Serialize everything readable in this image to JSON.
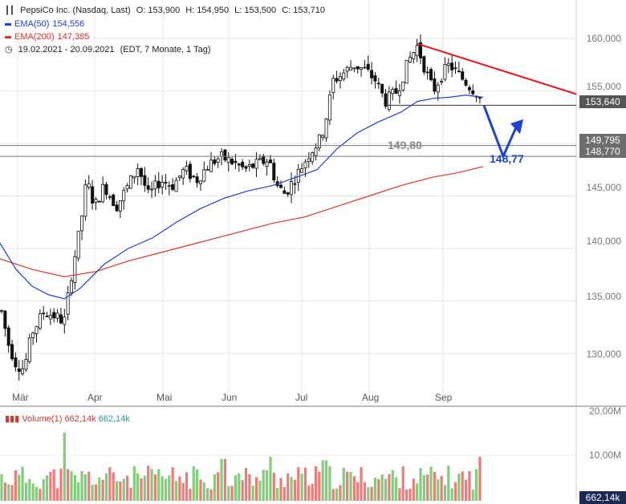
{
  "header": {
    "instrument": "PepsiCo Inc. (Nasdaq, Last)",
    "ohlc": {
      "O": "O: 153,900",
      "H": "H: 154,950",
      "L": "L: 153,500",
      "C": "C: 153,710"
    },
    "ema50_label": "EMA(50)",
    "ema50_value": "154,556",
    "ema200_label": "EMA(200)",
    "ema200_value": "147,385",
    "period_text": "19.02.2021 - 20.09.2021",
    "period_detail": "(EDT, 7 Monate, 1 Tag)"
  },
  "colors": {
    "ema50": "#1f3fd6",
    "ema200": "#e0332a",
    "trendline": "#e8131a",
    "arrow": "#1a44d6",
    "volume_up": "#7fcf7a",
    "volume_down": "#f07a7a"
  },
  "price_tags": {
    "last": "153,640",
    "support": "149,795",
    "target": "148,770",
    "volume_last": "662,14k"
  },
  "annotations": {
    "support_text": "149,80",
    "target_text": "148,77"
  },
  "volume": {
    "label": "Volume(1)",
    "value1": "662,14k",
    "value2": "662,14k",
    "axis": [
      "20,00M",
      "10,00M"
    ]
  },
  "chart_data": {
    "type": "candlestick",
    "title": "PepsiCo Inc. (Nasdaq, Last)",
    "y_axis_ticks": [
      "160,000",
      "155,000",
      "150,000",
      "145,000",
      "140,000",
      "135,000",
      "130,000"
    ],
    "x_axis_months": [
      "Mär",
      "Apr",
      "Mai",
      "Jun",
      "Jul",
      "Aug",
      "Sep"
    ],
    "ylim": [
      125.5,
      163.5
    ],
    "horizontal_levels": [
      153.64,
      149.795,
      148.77
    ],
    "trendline": {
      "from": [
        "Aug 19",
        159.5
      ],
      "to": [
        "Sep 30",
        153.8
      ]
    },
    "projection": {
      "points": [
        153.6,
        148.77,
        152.3
      ]
    },
    "series": [
      {
        "name": "EMA(50)",
        "last": 154.556
      },
      {
        "name": "EMA(200)",
        "last": 147.385
      }
    ]
  }
}
